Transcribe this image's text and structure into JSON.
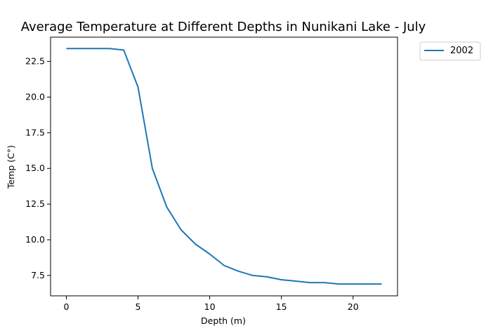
{
  "chart_data": {
    "type": "line",
    "title": "Average Temperature at Different Depths in Nunikani Lake - July",
    "xlabel": "Depth (m)",
    "ylabel": "Temp (C°)",
    "xlim": [
      -1.1,
      23.1
    ],
    "ylim": [
      6.07,
      24.2
    ],
    "xticks": [
      0,
      5,
      10,
      15,
      20
    ],
    "xtick_labels": [
      "0",
      "5",
      "10",
      "15",
      "20"
    ],
    "yticks": [
      7.5,
      10.0,
      12.5,
      15.0,
      17.5,
      20.0,
      22.5
    ],
    "ytick_labels": [
      "7.5",
      "10.0",
      "12.5",
      "15.0",
      "17.5",
      "20.0",
      "22.5"
    ],
    "grid": false,
    "legend_position": "outside-top-right",
    "series": [
      {
        "name": "2002",
        "color": "#1f77b4",
        "x": [
          0,
          1,
          2,
          3,
          4,
          5,
          6,
          7,
          8,
          9,
          10,
          11,
          12,
          13,
          14,
          15,
          16,
          17,
          18,
          19,
          20,
          21,
          22
        ],
        "y": [
          23.4,
          23.4,
          23.4,
          23.4,
          23.3,
          20.7,
          15.0,
          12.3,
          10.7,
          9.7,
          9.0,
          8.2,
          7.8,
          7.5,
          7.4,
          7.2,
          7.1,
          7.0,
          7.0,
          6.9,
          6.9,
          6.9,
          6.9
        ]
      }
    ]
  }
}
